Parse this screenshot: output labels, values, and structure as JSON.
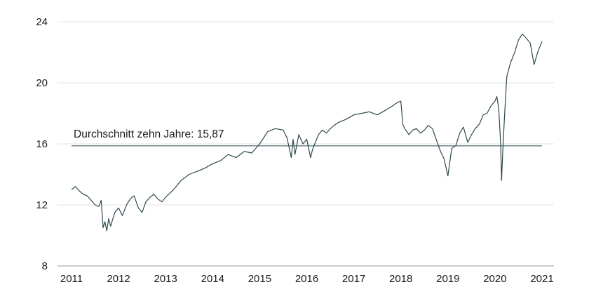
{
  "chart_data": {
    "type": "line",
    "title": "",
    "xlabel": "",
    "ylabel": "",
    "ylim": [
      8,
      24
    ],
    "xlim": [
      2011,
      2021
    ],
    "y_ticks": [
      "8",
      "12",
      "16",
      "20",
      "24"
    ],
    "x_ticks": [
      "2011",
      "2012",
      "2013",
      "2014",
      "2015",
      "2016",
      "2017",
      "2018",
      "2019",
      "2020",
      "2021"
    ],
    "grid": "horizontal",
    "line_color": "#2f4a4d",
    "average": {
      "label": "Durchschnitt zehn Jahre: 15,87",
      "value": 15.87
    },
    "series": [
      {
        "x": [
          2011.0,
          2011.08,
          2011.17,
          2011.25,
          2011.33,
          2011.42,
          2011.5,
          2011.58,
          2011.63,
          2011.67,
          2011.71,
          2011.75,
          2011.79,
          2011.83,
          2011.92,
          2012.0,
          2012.08,
          2012.17,
          2012.25,
          2012.33,
          2012.42,
          2012.5,
          2012.58,
          2012.67,
          2012.75,
          2012.83,
          2012.92,
          2013.0,
          2013.17,
          2013.33,
          2013.5,
          2013.67,
          2013.83,
          2014.0,
          2014.17,
          2014.33,
          2014.5,
          2014.67,
          2014.83,
          2015.0,
          2015.17,
          2015.33,
          2015.5,
          2015.58,
          2015.67,
          2015.71,
          2015.75,
          2015.83,
          2015.92,
          2016.0,
          2016.08,
          2016.12,
          2016.17,
          2016.25,
          2016.33,
          2016.42,
          2016.5,
          2016.58,
          2016.67,
          2016.83,
          2017.0,
          2017.17,
          2017.33,
          2017.5,
          2017.67,
          2017.83,
          2017.92,
          2018.0,
          2018.04,
          2018.08,
          2018.17,
          2018.25,
          2018.33,
          2018.42,
          2018.5,
          2018.58,
          2018.67,
          2018.75,
          2018.83,
          2018.92,
          2019.0,
          2019.08,
          2019.17,
          2019.25,
          2019.33,
          2019.42,
          2019.5,
          2019.58,
          2019.67,
          2019.75,
          2019.83,
          2019.92,
          2020.0,
          2020.04,
          2020.08,
          2020.12,
          2020.14,
          2020.17,
          2020.21,
          2020.25,
          2020.33,
          2020.42,
          2020.5,
          2020.58,
          2020.67,
          2020.75,
          2020.83,
          2020.92,
          2021.0
        ],
        "y": [
          13.0,
          13.2,
          12.9,
          12.7,
          12.6,
          12.3,
          12.0,
          11.9,
          12.3,
          10.5,
          10.9,
          10.3,
          11.1,
          10.6,
          11.5,
          11.8,
          11.3,
          12.0,
          12.4,
          12.6,
          11.8,
          11.5,
          12.2,
          12.5,
          12.7,
          12.4,
          12.2,
          12.5,
          13.0,
          13.6,
          14.0,
          14.2,
          14.4,
          14.7,
          14.9,
          15.3,
          15.1,
          15.5,
          15.4,
          16.0,
          16.8,
          17.0,
          16.9,
          16.4,
          15.1,
          16.3,
          15.3,
          16.6,
          16.0,
          16.3,
          15.1,
          15.6,
          16.0,
          16.6,
          16.9,
          16.7,
          17.0,
          17.2,
          17.4,
          17.6,
          17.9,
          18.0,
          18.1,
          17.9,
          18.2,
          18.5,
          18.7,
          18.8,
          17.3,
          17.0,
          16.6,
          16.9,
          17.0,
          16.7,
          16.9,
          17.2,
          17.0,
          16.3,
          15.6,
          15.0,
          13.9,
          15.7,
          15.9,
          16.7,
          17.1,
          16.1,
          16.6,
          17.0,
          17.3,
          17.9,
          18.0,
          18.5,
          18.8,
          19.1,
          18.3,
          16.0,
          13.6,
          15.8,
          18.2,
          20.4,
          21.3,
          22.0,
          22.8,
          23.2,
          22.9,
          22.6,
          21.2,
          22.1,
          22.7
        ]
      }
    ]
  }
}
